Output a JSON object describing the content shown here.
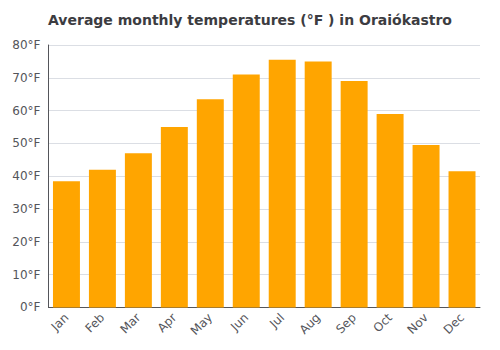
{
  "chart_data": {
    "type": "bar",
    "title": "Average monthly temperatures (°F ) in Oraiókastro",
    "categories": [
      "Jan",
      "Feb",
      "Mar",
      "Apr",
      "May",
      "Jun",
      "Jul",
      "Aug",
      "Sep",
      "Oct",
      "Nov",
      "Dec"
    ],
    "values": [
      38.5,
      42.0,
      47.0,
      55.0,
      63.5,
      71.0,
      75.5,
      75.0,
      69.0,
      59.0,
      49.5,
      41.5
    ],
    "color": "#FFA500",
    "ylim": [
      0,
      80
    ],
    "yticks": [
      {
        "value": 0,
        "label": "0°F"
      },
      {
        "value": 10,
        "label": "10°F"
      },
      {
        "value": 20,
        "label": "20°F"
      },
      {
        "value": 30,
        "label": "30°F"
      },
      {
        "value": 40,
        "label": "40°F"
      },
      {
        "value": 50,
        "label": "50°F"
      },
      {
        "value": 60,
        "label": "60°F"
      },
      {
        "value": 70,
        "label": "70°F"
      },
      {
        "value": 80,
        "label": "80°F"
      }
    ],
    "grid": true
  }
}
